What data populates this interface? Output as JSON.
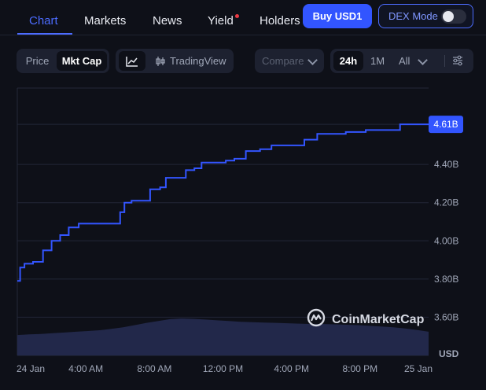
{
  "nav": {
    "tabs": [
      {
        "label": "Chart"
      },
      {
        "label": "Markets"
      },
      {
        "label": "News"
      },
      {
        "label": "Yield"
      },
      {
        "label": "Holders"
      }
    ],
    "buy_label": "Buy USD1",
    "dex_label": "DEX Mode"
  },
  "toolbar": {
    "price_label": "Price",
    "mktcap_label": "Mkt Cap",
    "tradingview_label": "TradingView",
    "compare_label": "Compare",
    "ranges": [
      "24h",
      "1M",
      "All"
    ],
    "selected_range": "24h"
  },
  "watermark": "CoinMarketCap",
  "colors": {
    "accent": "#3255ff",
    "line": "#3355ff",
    "volume": "#22284a",
    "background": "#0e1018"
  },
  "chart_data": {
    "type": "line",
    "series": [
      {
        "values": [
          {
            "x": "00:00",
            "y": 3.79
          },
          {
            "x": "00:10",
            "y": 3.86
          },
          {
            "x": "00:25",
            "y": 3.88
          },
          {
            "x": "00:55",
            "y": 3.89
          },
          {
            "x": "01:30",
            "y": 3.95
          },
          {
            "x": "02:00",
            "y": 4.0
          },
          {
            "x": "02:30",
            "y": 4.03
          },
          {
            "x": "03:00",
            "y": 4.07
          },
          {
            "x": "03:35",
            "y": 4.09
          },
          {
            "x": "04:30",
            "y": 4.09
          },
          {
            "x": "05:45",
            "y": 4.09
          },
          {
            "x": "06:00",
            "y": 4.15
          },
          {
            "x": "06:15",
            "y": 4.2
          },
          {
            "x": "06:40",
            "y": 4.21
          },
          {
            "x": "07:30",
            "y": 4.21
          },
          {
            "x": "07:45",
            "y": 4.27
          },
          {
            "x": "08:20",
            "y": 4.28
          },
          {
            "x": "08:40",
            "y": 4.33
          },
          {
            "x": "09:30",
            "y": 4.33
          },
          {
            "x": "09:50",
            "y": 4.37
          },
          {
            "x": "10:20",
            "y": 4.38
          },
          {
            "x": "10:45",
            "y": 4.41
          },
          {
            "x": "11:40",
            "y": 4.41
          },
          {
            "x": "12:10",
            "y": 4.42
          },
          {
            "x": "12:40",
            "y": 4.43
          },
          {
            "x": "13:20",
            "y": 4.47
          },
          {
            "x": "14:10",
            "y": 4.48
          },
          {
            "x": "14:50",
            "y": 4.5
          },
          {
            "x": "16:10",
            "y": 4.5
          },
          {
            "x": "16:45",
            "y": 4.53
          },
          {
            "x": "17:30",
            "y": 4.56
          },
          {
            "x": "18:30",
            "y": 4.56
          },
          {
            "x": "19:10",
            "y": 4.57
          },
          {
            "x": "20:20",
            "y": 4.58
          },
          {
            "x": "21:50",
            "y": 4.58
          },
          {
            "x": "22:20",
            "y": 4.61
          },
          {
            "x": "24:00",
            "y": 4.61
          }
        ]
      }
    ],
    "volume": [
      0.55,
      0.57,
      0.58,
      0.6,
      0.62,
      0.64,
      0.66,
      0.68,
      0.72,
      0.76,
      0.82,
      0.88,
      0.93,
      0.98,
      1.0,
      0.99,
      0.97,
      0.95,
      0.93,
      0.91,
      0.9,
      0.89,
      0.88,
      0.87,
      0.86,
      0.85,
      0.85,
      0.84,
      0.83,
      0.82,
      0.8,
      0.78,
      0.76,
      0.73,
      0.69,
      0.64
    ],
    "y_ticks": [
      "3.60B",
      "3.80B",
      "4.00B",
      "4.20B",
      "4.40B"
    ],
    "y_tick_values": [
      3.6,
      3.8,
      4.0,
      4.2,
      4.4
    ],
    "current_label": "4.61B",
    "current_value": 4.61,
    "ylim": [
      3.4,
      4.8
    ],
    "x_ticks": [
      "24 Jan",
      "4:00 AM",
      "8:00 AM",
      "12:00 PM",
      "4:00 PM",
      "8:00 PM",
      "25 Jan"
    ],
    "x_tick_hours": [
      0,
      4,
      8,
      12,
      16,
      20,
      24
    ],
    "ylabel": "USD",
    "grid": true
  }
}
